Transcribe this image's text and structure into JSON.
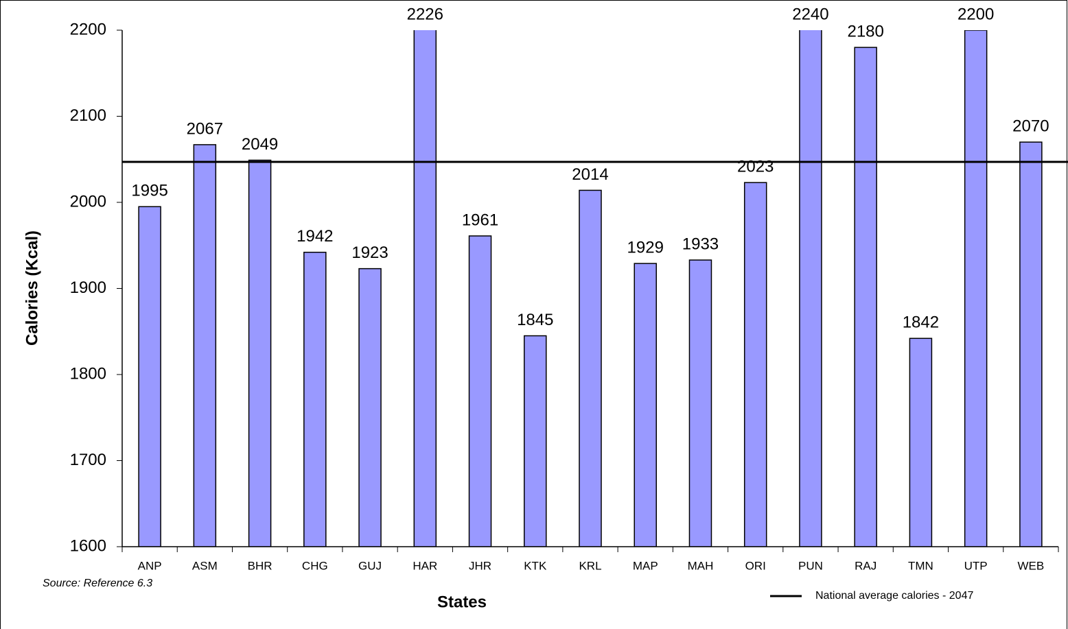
{
  "chart_data": {
    "type": "bar",
    "y_label": "Calories (Kcal)",
    "x_label": "States",
    "source": "Source: Reference 6.3",
    "categories": [
      "ANP",
      "ASM",
      "BHR",
      "CHG",
      "GUJ",
      "HAR",
      "JHR",
      "KTK",
      "KRL",
      "MAP",
      "MAH",
      "ORI",
      "PUN",
      "RAJ",
      "TMN",
      "UTP",
      "WEB"
    ],
    "values": [
      1995,
      2067,
      2049,
      1942,
      1923,
      2226,
      1961,
      1845,
      2014,
      1929,
      1933,
      2023,
      2240,
      2180,
      1842,
      2200,
      2070
    ],
    "color": "#9999ff",
    "ylim": [
      1600,
      2200
    ],
    "yticks": [
      1600,
      1700,
      1800,
      1900,
      2000,
      2100,
      2200
    ],
    "reference_line": {
      "name": "National average calories - 2047",
      "value": 2047,
      "color": "#000000"
    },
    "legend": "bottom-right"
  }
}
